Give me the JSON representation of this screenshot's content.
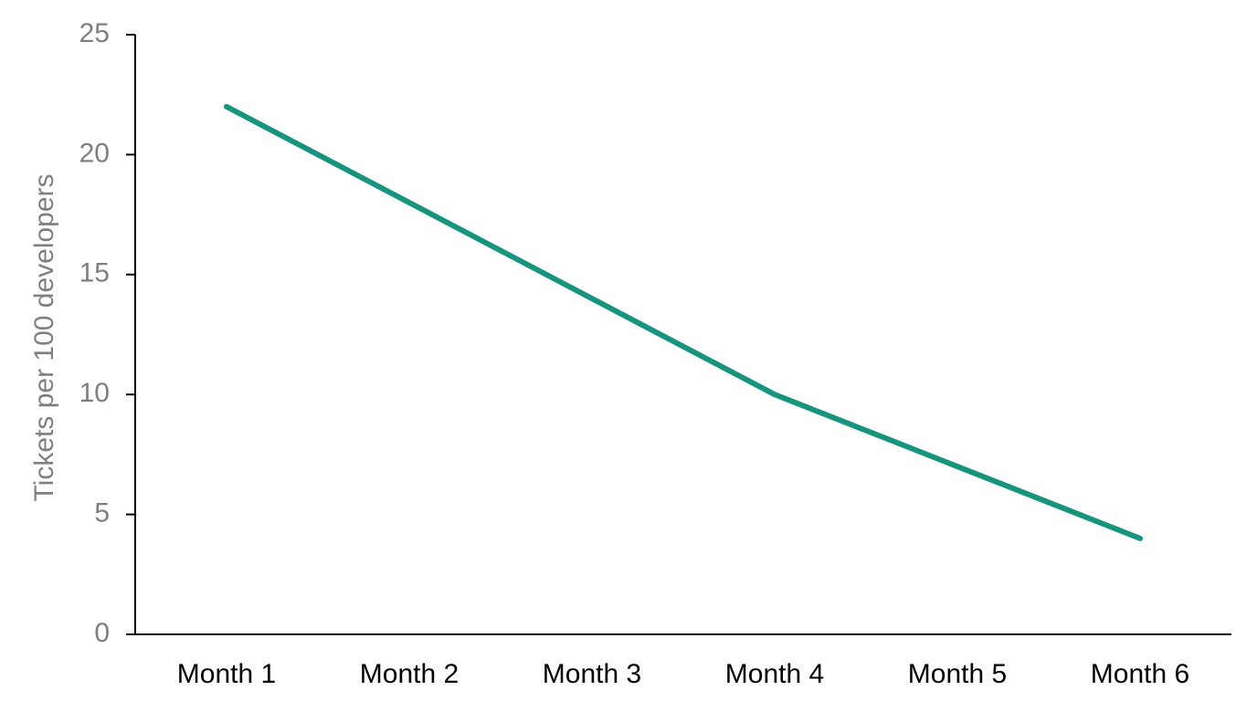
{
  "chart_data": {
    "type": "line",
    "y_label": "Tickets per 100 developers",
    "categories": [
      "Month 1",
      "Month 2",
      "Month 3",
      "Month 4",
      "Month 5",
      "Month 6"
    ],
    "series": [
      {
        "color": "#17947e",
        "values": [
          22,
          18,
          14,
          10,
          7,
          4
        ]
      }
    ],
    "ylim": [
      0,
      25
    ],
    "yticks": [
      0,
      5,
      10,
      15,
      20,
      25
    ],
    "grid": false
  }
}
